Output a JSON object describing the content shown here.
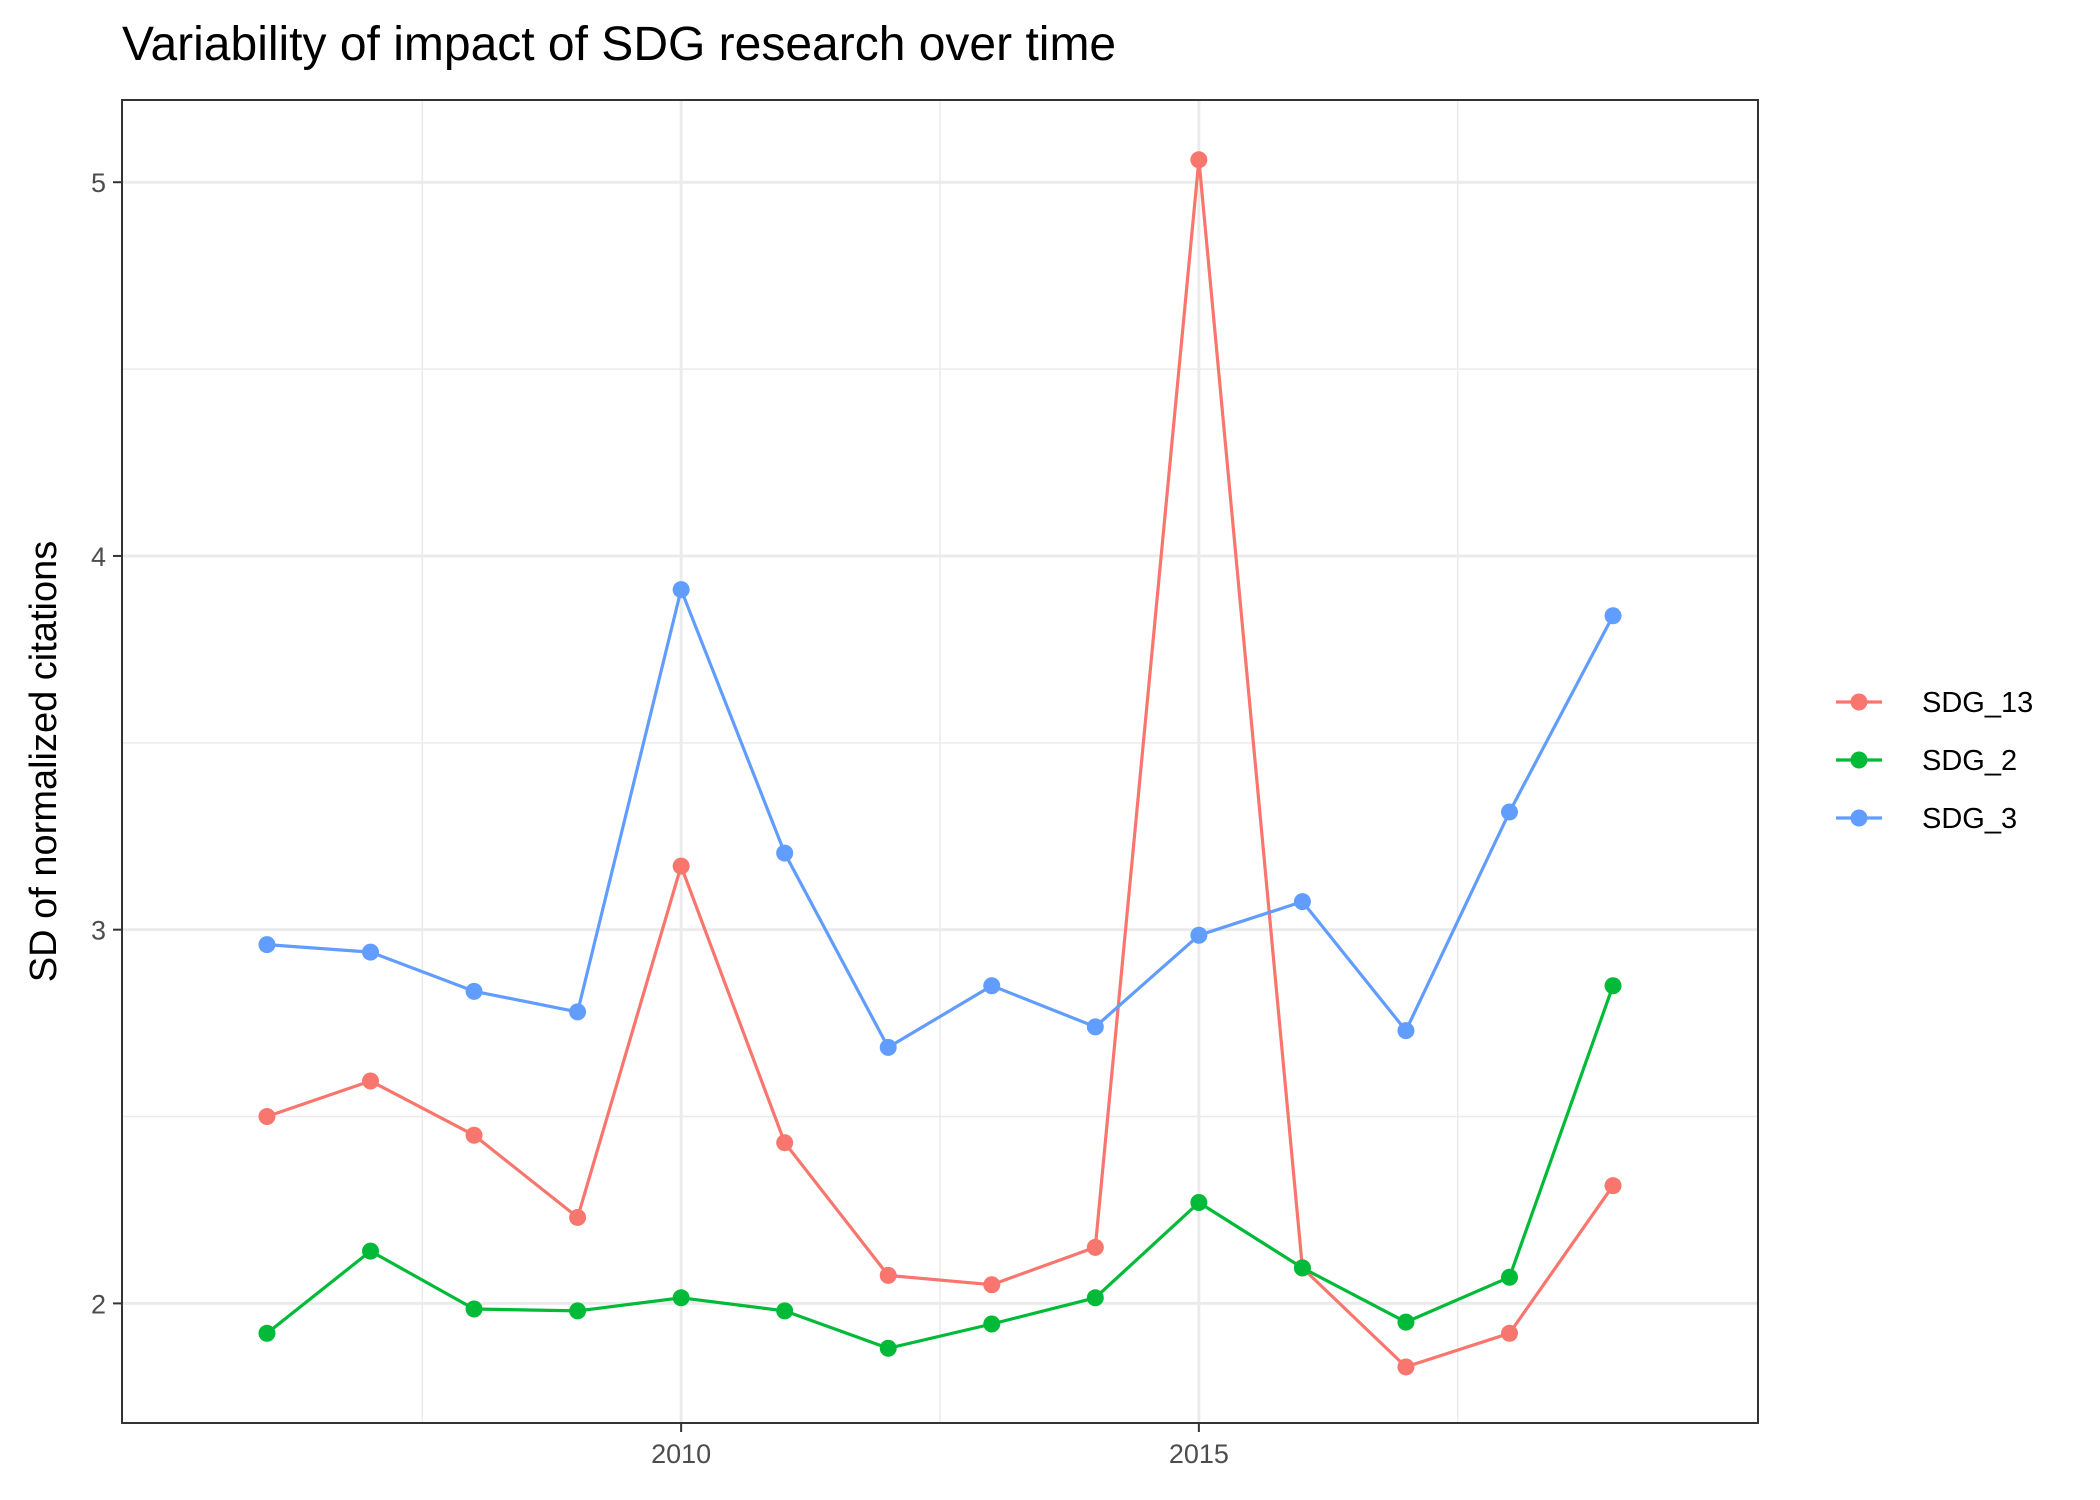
{
  "chart_data": {
    "type": "line",
    "title": "Variability of impact of SDG research over time",
    "xlabel": "",
    "ylabel": "SD of normalized citations",
    "x": [
      2006,
      2007,
      2008,
      2009,
      2010,
      2011,
      2012,
      2013,
      2014,
      2015,
      2016,
      2017,
      2018,
      2019
    ],
    "xlim": [
      2004.6,
      2020.4
    ],
    "ylim": [
      1.68,
      5.22
    ],
    "x_ticks": [
      2010,
      2015
    ],
    "y_ticks": [
      2,
      3,
      4,
      5
    ],
    "grid": true,
    "legend_position": "right",
    "series": [
      {
        "name": "SDG_13",
        "color": "#F8766D",
        "values": [
          2.5,
          2.595,
          2.45,
          2.23,
          3.17,
          2.43,
          2.075,
          2.05,
          2.15,
          5.06,
          2.095,
          1.83,
          1.92,
          2.315
        ]
      },
      {
        "name": "SDG_2",
        "color": "#00BA38",
        "values": [
          1.92,
          2.14,
          1.985,
          1.98,
          2.015,
          1.98,
          1.88,
          1.945,
          2.015,
          2.27,
          2.095,
          1.95,
          2.07,
          2.85
        ]
      },
      {
        "name": "SDG_3",
        "color": "#619CFF",
        "values": [
          2.96,
          2.94,
          2.835,
          2.78,
          3.91,
          3.205,
          2.685,
          2.85,
          2.74,
          2.985,
          3.075,
          2.73,
          3.315,
          3.84
        ]
      }
    ]
  }
}
